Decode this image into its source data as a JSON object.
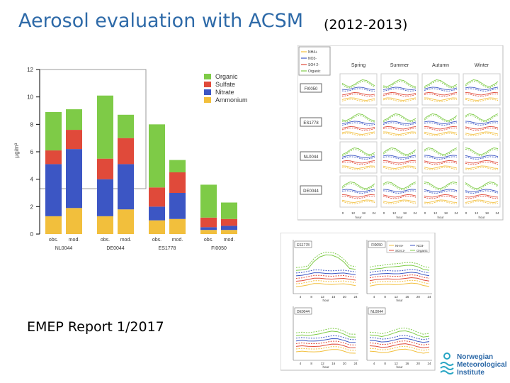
{
  "header": {
    "title": "Aerosol evaluation with ACSM",
    "period": "(2012-2013)"
  },
  "footer": {
    "report": "EMEP Report 1/2017"
  },
  "logo": {
    "line1": "Norwegian",
    "line2": "Meteorological",
    "line3": "Institute",
    "icon": "met-waves-icon"
  },
  "colors": {
    "organic": "#7ecb47",
    "sulfate": "#e04a3a",
    "nitrate": "#3c56c4",
    "ammonium": "#f2bf3c"
  },
  "chart_data": [
    {
      "type": "bar",
      "stacked": true,
      "ylabel": "μg/m³",
      "ylim": [
        0,
        12
      ],
      "yticks": [
        0,
        2,
        4,
        6,
        8,
        10,
        12
      ],
      "groups": [
        "NL0044",
        "DE0044",
        "ES1778",
        "FI0050"
      ],
      "categories": [
        "obs.",
        "mod.",
        "obs.",
        "mod.",
        "obs.",
        "mod.",
        "obs.",
        "mod."
      ],
      "legend_position": "top-right",
      "series": [
        {
          "name": "Ammonium",
          "values": [
            1.3,
            1.9,
            1.3,
            1.8,
            1.0,
            1.1,
            0.3,
            0.3
          ]
        },
        {
          "name": "Nitrate",
          "values": [
            3.8,
            4.3,
            2.7,
            3.3,
            1.0,
            1.9,
            0.2,
            0.3
          ]
        },
        {
          "name": "Sulfate",
          "values": [
            1.0,
            1.4,
            1.5,
            1.9,
            1.4,
            1.5,
            0.7,
            0.5
          ]
        },
        {
          "name": "Organic",
          "values": [
            2.8,
            1.5,
            4.6,
            1.7,
            4.6,
            0.9,
            2.4,
            1.2
          ]
        }
      ]
    },
    {
      "type": "line",
      "legend": [
        "NH4+",
        "NO3-",
        "SO4 2-",
        "Organic"
      ],
      "columns": [
        "Spring",
        "Summer",
        "Autumn",
        "Winter"
      ],
      "rows": [
        "FI0050",
        "ES1778",
        "NL0044",
        "DE0044"
      ],
      "xticks": [
        0,
        12,
        18,
        24
      ],
      "xlabel": "hour"
    },
    {
      "type": "line",
      "legend": [
        "NH4+",
        "NO3-",
        "SO4 2-",
        "Organic"
      ],
      "panels": [
        "ES1778",
        "FI0050",
        "DE0044",
        "NL0044"
      ],
      "xticks": [
        4,
        8,
        12,
        16,
        20,
        24
      ],
      "xlabel": "hour"
    }
  ]
}
